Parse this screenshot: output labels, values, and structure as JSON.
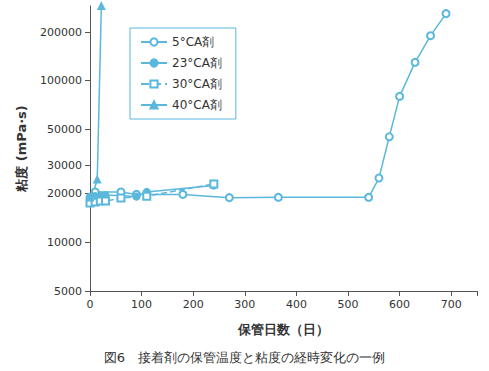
{
  "chart_data": {
    "type": "line",
    "title": "図6　接着剤の保管温度と粘度の経時変化の一例",
    "x_label": "保管日数（日）",
    "y_label": "粘度 (mPa·s)",
    "xlim": [
      0,
      750
    ],
    "xticks": [
      0,
      100,
      200,
      300,
      400,
      500,
      600,
      700
    ],
    "ylim": [
      5000,
      290000
    ],
    "yticks": [
      5000,
      10000,
      20000,
      30000,
      50000,
      100000,
      200000
    ],
    "log": "y",
    "grid": false,
    "legend": "upper left",
    "series": [
      {
        "name": "5°CA剤",
        "color": "#5bb8dc",
        "marker": "open_circle",
        "line_style": "solid",
        "x": [
          0,
          10,
          60,
          90,
          180,
          270,
          365,
          540,
          560,
          580,
          600,
          630,
          660,
          690
        ],
        "values": [
          19000,
          20500,
          20500,
          19800,
          19800,
          18900,
          19000,
          19000,
          25000,
          45000,
          80000,
          130000,
          190000,
          260000
        ]
      },
      {
        "name": "23°CA剤",
        "color": "#5bb8dc",
        "marker": "filled_circle",
        "line_style": "solid",
        "x": [
          0,
          5,
          10,
          20,
          30,
          90,
          110,
          240
        ],
        "values": [
          18800,
          19000,
          19300,
          19500,
          19600,
          19200,
          20500,
          22500
        ]
      },
      {
        "name": "30°CA剤",
        "color": "#5bb8dc",
        "marker": "open_square",
        "line_style": "dashed",
        "x": [
          0,
          10,
          20,
          30,
          60,
          110,
          240
        ],
        "values": [
          17500,
          17800,
          18000,
          18000,
          18800,
          19300,
          23000
        ]
      },
      {
        "name": "40°CA剤",
        "color": "#5bb8dc",
        "marker": "filled_triangle",
        "line_style": "solid",
        "x": [
          0,
          5,
          14,
          22
        ],
        "values": [
          19000,
          19500,
          24500,
          290000
        ]
      }
    ]
  }
}
